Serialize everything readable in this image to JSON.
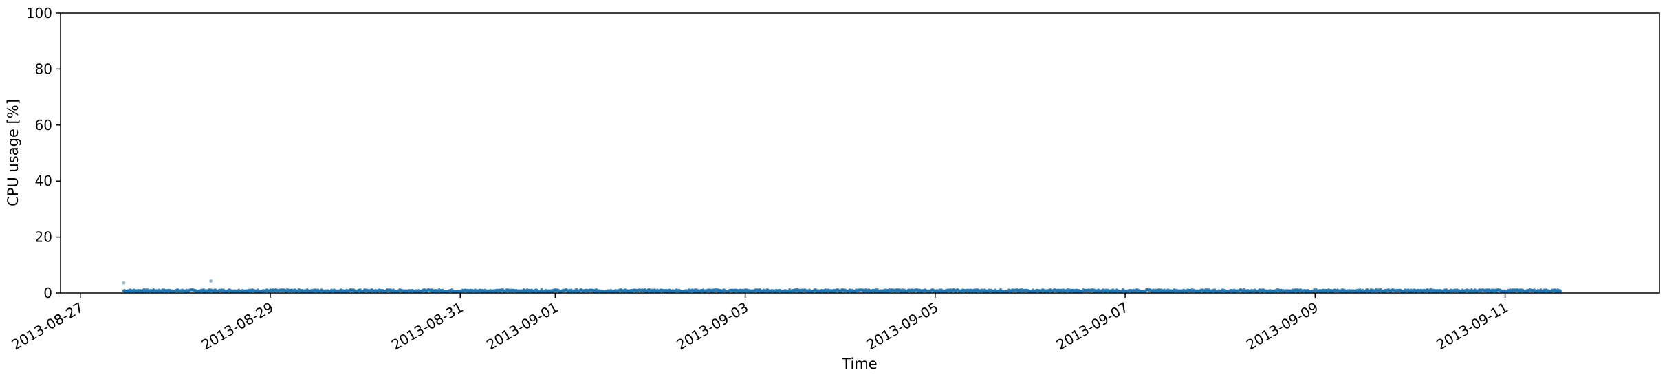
{
  "chart_data": {
    "type": "scatter",
    "title": "",
    "xlabel": "Time",
    "ylabel": "CPU usage [%]",
    "ylim": [
      0,
      100
    ],
    "yticks": [
      0,
      20,
      40,
      60,
      80,
      100
    ],
    "xlim": [
      "2013-08-26T19:00:00",
      "2013-09-12T15:00:00"
    ],
    "xticks": [
      "2013-08-27",
      "2013-08-29",
      "2013-08-31",
      "2013-09-01",
      "2013-09-03",
      "2013-09-05",
      "2013-09-07",
      "2013-09-09",
      "2013-09-11"
    ],
    "series": [
      {
        "name": "CPU usage",
        "color": "#1f77b4",
        "start": "2013-08-27T11:00:00",
        "end": "2013-09-11T14:00:00",
        "baseline_range": [
          0.5,
          1.2
        ],
        "outliers": [
          {
            "x": "2013-08-27T11:00:00",
            "y": 3.6
          },
          {
            "x": "2013-08-28T09:00:00",
            "y": 4.3
          }
        ]
      }
    ]
  }
}
